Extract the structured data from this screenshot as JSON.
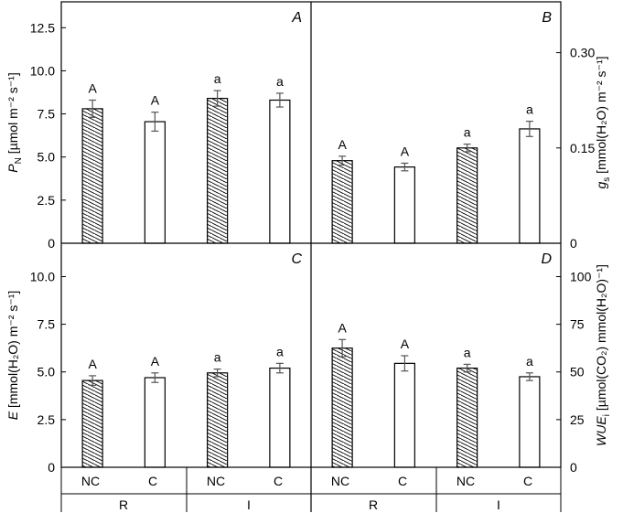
{
  "chart_data": {
    "type": "bar",
    "panels": [
      {
        "id": "A",
        "letter": "A",
        "ylabel": {
          "main": "P",
          "sub": "N",
          "units": " [µmol m⁻² s⁻¹]"
        },
        "ylim": [
          0,
          14
        ],
        "yticks": [
          "0",
          "2.5",
          "5.0",
          "7.5",
          "10.0",
          "12.5"
        ],
        "ytick_values": [
          0,
          2.5,
          5.0,
          7.5,
          10.0,
          12.5
        ],
        "values": [
          7.8,
          7.05,
          8.4,
          8.3
        ],
        "errors": [
          0.5,
          0.55,
          0.45,
          0.4
        ],
        "letters": [
          "A",
          "A",
          "a",
          "a"
        ],
        "axis_side": "left"
      },
      {
        "id": "B",
        "letter": "B",
        "ylabel": {
          "main": "g",
          "sub": "s",
          "units": " [mmol(H₂O) m⁻² s⁻¹]"
        },
        "ylim": [
          0,
          0.38
        ],
        "yticks": [
          "0",
          "0.15",
          "0.30"
        ],
        "ytick_values": [
          0,
          0.15,
          0.3
        ],
        "values": [
          0.13,
          0.12,
          0.15,
          0.18
        ],
        "errors": [
          0.007,
          0.006,
          0.006,
          0.012
        ],
        "letters": [
          "A",
          "A",
          "a",
          "a"
        ],
        "axis_side": "right"
      },
      {
        "id": "C",
        "letter": "C",
        "ylabel": {
          "main": "E",
          "sub": "",
          "units": " [mmol(H₂O) m⁻² s⁻¹]"
        },
        "ylim": [
          0,
          11.75
        ],
        "yticks": [
          "0",
          "2.5",
          "5.0",
          "7.5",
          "10.0"
        ],
        "ytick_values": [
          0,
          2.5,
          5.0,
          7.5,
          10.0
        ],
        "values": [
          4.55,
          4.7,
          4.95,
          5.2
        ],
        "errors": [
          0.25,
          0.25,
          0.2,
          0.25
        ],
        "letters": [
          "A",
          "A",
          "a",
          "a"
        ],
        "axis_side": "left"
      },
      {
        "id": "D",
        "letter": "D",
        "ylabel": {
          "main": "WUE",
          "sub": "i",
          "units": " [µmol(CO₂) mmol(H₂O)⁻¹]"
        },
        "ylim": [
          0,
          117.5
        ],
        "yticks": [
          "0",
          "25",
          "50",
          "75",
          "100"
        ],
        "ytick_values": [
          0,
          25,
          50,
          75,
          100
        ],
        "values": [
          62.5,
          54.5,
          52.0,
          47.5
        ],
        "errors": [
          4.5,
          4.0,
          2.0,
          2.0
        ],
        "letters": [
          "A",
          "A",
          "a",
          "a"
        ],
        "axis_side": "right"
      }
    ],
    "bar_categories": [
      "NC",
      "C",
      "NC",
      "C"
    ],
    "bar_fill": [
      "hatched",
      "open",
      "hatched",
      "open"
    ],
    "groups": [
      "R",
      "I",
      "R",
      "I"
    ]
  },
  "colors": {
    "axis": "#000000",
    "bar_fill": "#ffffff",
    "hatch": "#000000",
    "error_bar": "#555555"
  }
}
